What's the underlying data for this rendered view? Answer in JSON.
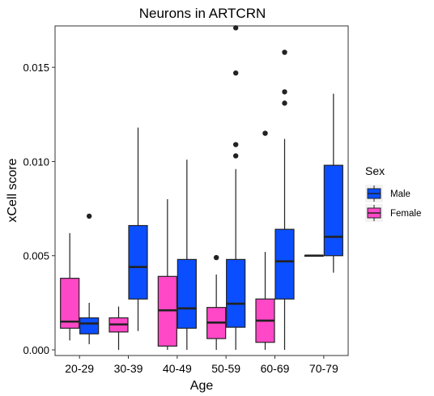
{
  "chart_data": {
    "type": "box",
    "title": "Neurons in ARTCRN",
    "xlabel": "Age",
    "ylabel": "xCell score",
    "categories": [
      "20-29",
      "30-39",
      "40-49",
      "50-59",
      "60-69",
      "70-79"
    ],
    "ylim": [
      -0.0003,
      0.0172
    ],
    "yticks": [
      0.0,
      0.005,
      0.01,
      0.015
    ],
    "ytick_labels": [
      "0.000",
      "0.005",
      "0.010",
      "0.015"
    ],
    "grid": false,
    "legend": {
      "title": "Sex",
      "position": "right"
    },
    "series": [
      {
        "name": "Female",
        "color": "#FF48C8",
        "boxes": [
          {
            "category": "20-29",
            "lower": 0.0005,
            "q1": 0.00115,
            "median": 0.0015,
            "q3": 0.0038,
            "upper": 0.0062,
            "outliers": []
          },
          {
            "category": "30-39",
            "lower": 0.0,
            "q1": 0.00095,
            "median": 0.00135,
            "q3": 0.0017,
            "upper": 0.0023,
            "outliers": []
          },
          {
            "category": "40-49",
            "lower": 0.0,
            "q1": 0.0002,
            "median": 0.0021,
            "q3": 0.0039,
            "upper": 0.008,
            "outliers": []
          },
          {
            "category": "50-59",
            "lower": 0.0,
            "q1": 0.0006,
            "median": 0.00145,
            "q3": 0.00225,
            "upper": 0.004,
            "outliers": [
              0.0049
            ]
          },
          {
            "category": "60-69",
            "lower": 0.0,
            "q1": 0.0004,
            "median": 0.00155,
            "q3": 0.0027,
            "upper": 0.0052,
            "outliers": [
              0.0115
            ]
          },
          {
            "category": "70-79",
            "lower": 0.005,
            "q1": 0.005,
            "median": 0.005,
            "q3": 0.005,
            "upper": 0.005,
            "outliers": []
          }
        ]
      },
      {
        "name": "Male",
        "color": "#0A4EFF",
        "boxes": [
          {
            "category": "20-29",
            "lower": 0.0003,
            "q1": 0.00085,
            "median": 0.0014,
            "q3": 0.0017,
            "upper": 0.0025,
            "outliers": [
              0.0071
            ]
          },
          {
            "category": "30-39",
            "lower": 0.001,
            "q1": 0.0027,
            "median": 0.0044,
            "q3": 0.0066,
            "upper": 0.0118,
            "outliers": []
          },
          {
            "category": "40-49",
            "lower": 0.0,
            "q1": 0.00115,
            "median": 0.0022,
            "q3": 0.0048,
            "upper": 0.0101,
            "outliers": []
          },
          {
            "category": "50-59",
            "lower": 0.0,
            "q1": 0.0012,
            "median": 0.00245,
            "q3": 0.0048,
            "upper": 0.0096,
            "outliers": [
              0.0103,
              0.0109,
              0.0147,
              0.0171
            ]
          },
          {
            "category": "60-69",
            "lower": 0.0,
            "q1": 0.0027,
            "median": 0.0047,
            "q3": 0.0064,
            "upper": 0.0112,
            "outliers": [
              0.0131,
              0.0137,
              0.0158
            ]
          },
          {
            "category": "70-79",
            "lower": 0.0041,
            "q1": 0.005,
            "median": 0.006,
            "q3": 0.0098,
            "upper": 0.0136,
            "outliers": []
          }
        ]
      }
    ],
    "legend_order": [
      "Male",
      "Female"
    ]
  }
}
